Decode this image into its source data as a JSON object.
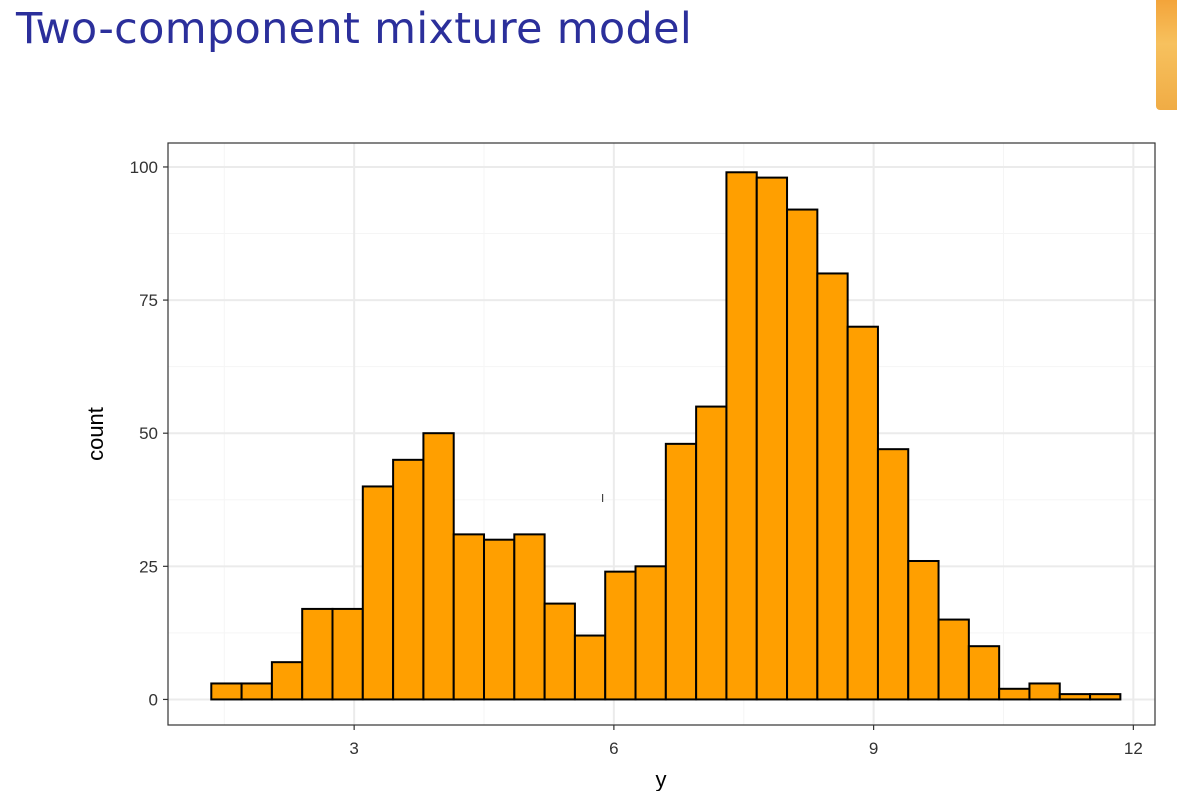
{
  "slide": {
    "title": "Two-component mixture model"
  },
  "colors": {
    "title": "#2b2f9b",
    "bar_fill": "#ff9f00",
    "bar_stroke": "#000000",
    "grid_major": "#ebebeb",
    "grid_minor": "#f5f5f5",
    "panel_border": "#333333"
  },
  "chart_data": {
    "type": "bar",
    "title": "",
    "xlabel": "y",
    "ylabel": "count",
    "xlim": [
      0.85,
      12.25
    ],
    "ylim": [
      -4.8,
      104.5
    ],
    "xticks": [
      3,
      6,
      9,
      12
    ],
    "yticks": [
      0,
      25,
      50,
      75,
      100
    ],
    "bin_width": 0.35,
    "bins_start": 1.35,
    "grid": true,
    "counts": [
      3,
      3,
      7,
      17,
      17,
      40,
      45,
      50,
      31,
      30,
      31,
      18,
      12,
      24,
      25,
      48,
      55,
      99,
      98,
      92,
      80,
      70,
      47,
      26,
      15,
      10,
      2,
      3,
      1,
      1
    ]
  }
}
